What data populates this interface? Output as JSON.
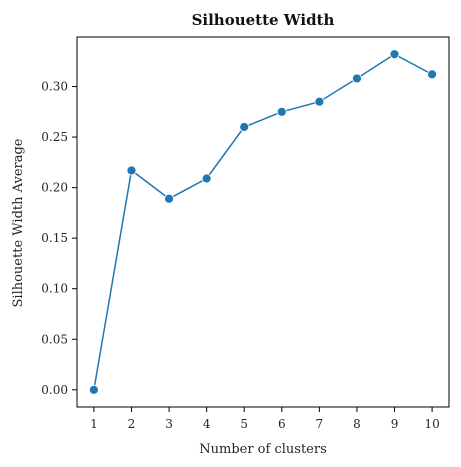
{
  "chart_data": {
    "type": "line",
    "title": "Silhouette Width",
    "xlabel": "Number of clusters",
    "ylabel": "Silhouette Width Average",
    "x": [
      1,
      2,
      3,
      4,
      5,
      6,
      7,
      8,
      9,
      10
    ],
    "series": [
      {
        "values": [
          0.0,
          0.217,
          0.189,
          0.209,
          0.26,
          0.275,
          0.285,
          0.308,
          0.332,
          0.312
        ]
      }
    ],
    "xlim": [
      0.55,
      10.45
    ],
    "ylim": [
      -0.017,
      0.349
    ],
    "yticks": [
      0.0,
      0.05,
      0.1,
      0.15,
      0.2,
      0.25,
      0.3
    ],
    "ytick_labels": [
      "0.00",
      "0.05",
      "0.10",
      "0.15",
      "0.20",
      "0.25",
      "0.30"
    ],
    "xticks": [
      1,
      2,
      3,
      4,
      5,
      6,
      7,
      8,
      9,
      10
    ],
    "xtick_labels": [
      "1",
      "2",
      "3",
      "4",
      "5",
      "6",
      "7",
      "8",
      "9",
      "10"
    ],
    "grid": false,
    "markers": true,
    "colors": {
      "line": "#1f77b4",
      "axis": "#000000",
      "text": "#262626"
    }
  }
}
